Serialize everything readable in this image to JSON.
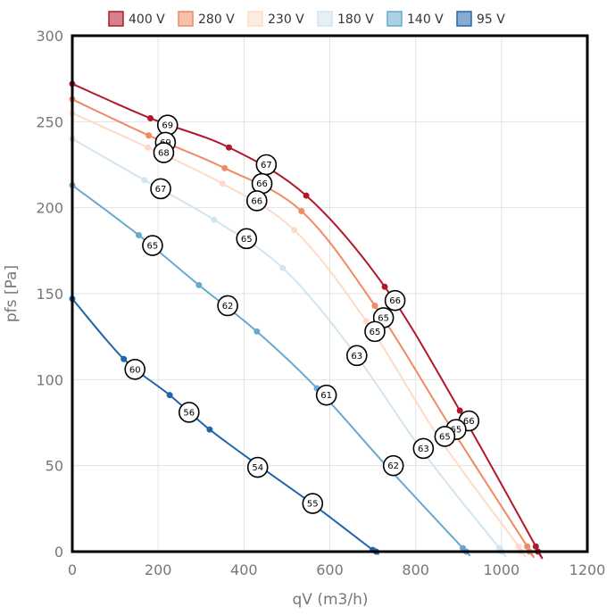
{
  "chart_data": {
    "type": "line",
    "title": "",
    "xlabel": "qV (m3/h)",
    "ylabel": "pfs [Pa]",
    "xlim": [
      0,
      1200
    ],
    "ylim": [
      0,
      300
    ],
    "x_ticks": [
      0,
      200,
      400,
      600,
      800,
      1000,
      1200
    ],
    "y_ticks": [
      0,
      50,
      100,
      150,
      200,
      250,
      300
    ],
    "grid": true,
    "legend_position": "top",
    "series": [
      {
        "name": "400 V",
        "color": "#b2182b",
        "points": [
          [
            0,
            272
          ],
          [
            182,
            252
          ],
          [
            365,
            235
          ],
          [
            545,
            207
          ],
          [
            728,
            154
          ],
          [
            903,
            82
          ],
          [
            1080,
            3
          ],
          [
            1085,
            0
          ]
        ],
        "labels": [
          {
            "x": 222,
            "y": 248,
            "text": "69"
          },
          {
            "x": 452,
            "y": 225,
            "text": "67"
          },
          {
            "x": 752,
            "y": 146,
            "text": "66"
          },
          {
            "x": 924,
            "y": 76,
            "text": "66"
          }
        ]
      },
      {
        "name": "280 V",
        "color": "#ef8a62",
        "points": [
          [
            0,
            263
          ],
          [
            178,
            242
          ],
          [
            355,
            223
          ],
          [
            534,
            198
          ],
          [
            705,
            143
          ],
          [
            880,
            73
          ],
          [
            1060,
            3
          ],
          [
            1065,
            0
          ]
        ],
        "labels": [
          {
            "x": 217,
            "y": 238,
            "text": "69"
          },
          {
            "x": 442,
            "y": 214,
            "text": "66"
          },
          {
            "x": 725,
            "y": 136,
            "text": "65"
          },
          {
            "x": 894,
            "y": 71,
            "text": "65"
          }
        ]
      },
      {
        "name": "230 V",
        "color": "#fddbc7",
        "points": [
          [
            0,
            255
          ],
          [
            176,
            235
          ],
          [
            350,
            214
          ],
          [
            517,
            187
          ],
          [
            685,
            134
          ],
          [
            855,
            66
          ],
          [
            1040,
            3
          ],
          [
            1045,
            0
          ]
        ],
        "labels": [
          {
            "x": 213,
            "y": 232,
            "text": "68"
          },
          {
            "x": 430,
            "y": 204,
            "text": "66"
          },
          {
            "x": 705,
            "y": 128,
            "text": "65"
          },
          {
            "x": 868,
            "y": 67,
            "text": "65"
          }
        ]
      },
      {
        "name": "180 V",
        "color": "#d1e5f0",
        "points": [
          [
            0,
            240
          ],
          [
            168,
            216
          ],
          [
            330,
            193
          ],
          [
            490,
            165
          ],
          [
            650,
            118
          ],
          [
            820,
            57
          ],
          [
            995,
            2
          ],
          [
            1000,
            0
          ]
        ],
        "labels": [
          {
            "x": 206,
            "y": 211,
            "text": "67"
          },
          {
            "x": 406,
            "y": 182,
            "text": "65"
          },
          {
            "x": 663,
            "y": 114,
            "text": "63"
          },
          {
            "x": 818,
            "y": 60,
            "text": "63"
          }
        ]
      },
      {
        "name": "140 V",
        "color": "#67a9cf",
        "points": [
          [
            0,
            213
          ],
          [
            155,
            184
          ],
          [
            295,
            155
          ],
          [
            430,
            128
          ],
          [
            570,
            95
          ],
          [
            735,
            49
          ],
          [
            910,
            2
          ],
          [
            918,
            0
          ]
        ],
        "labels": [
          {
            "x": 187,
            "y": 178,
            "text": "65"
          },
          {
            "x": 362,
            "y": 143,
            "text": "62"
          },
          {
            "x": 592,
            "y": 91,
            "text": "61"
          },
          {
            "x": 748,
            "y": 50,
            "text": "62"
          }
        ]
      },
      {
        "name": "95 V",
        "color": "#2166ac",
        "points": [
          [
            0,
            147
          ],
          [
            120,
            112
          ],
          [
            227,
            91
          ],
          [
            320,
            71
          ],
          [
            440,
            49
          ],
          [
            558,
            28
          ],
          [
            700,
            1
          ],
          [
            708,
            0
          ]
        ],
        "labels": [
          {
            "x": 146,
            "y": 106,
            "text": "60"
          },
          {
            "x": 272,
            "y": 81,
            "text": "56"
          },
          {
            "x": 432,
            "y": 49,
            "text": "54"
          },
          {
            "x": 560,
            "y": 28,
            "text": "55"
          }
        ]
      }
    ]
  }
}
